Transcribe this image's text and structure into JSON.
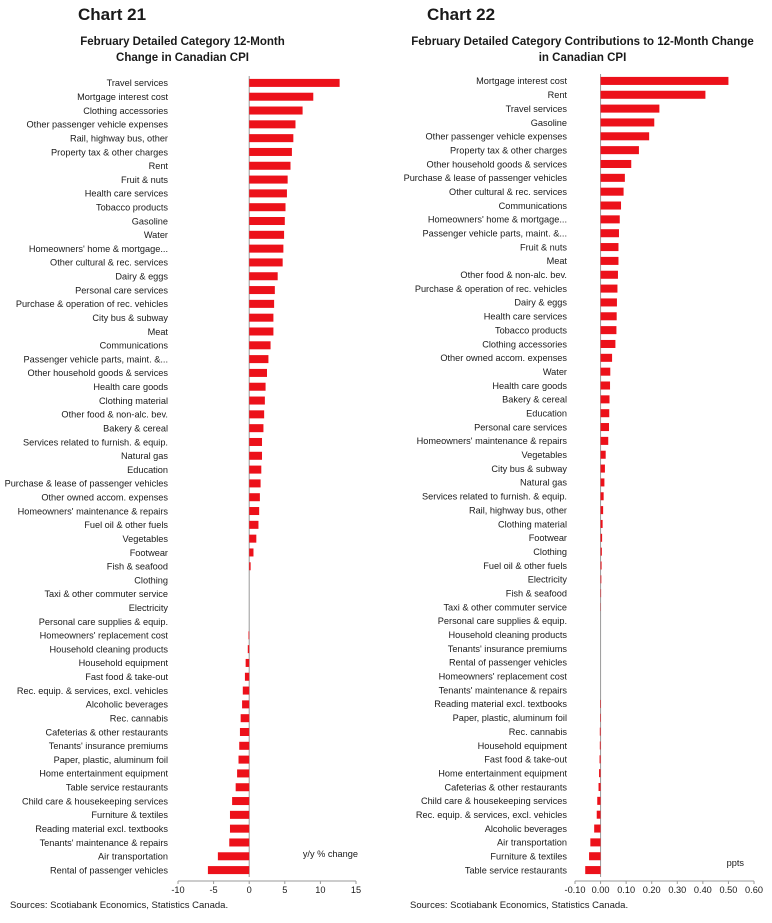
{
  "chart_data": [
    {
      "type": "bar",
      "orientation": "horizontal",
      "chart_number": "Chart 21",
      "title": "February Detailed Category 12-Month Change in Canadian CPI",
      "unit_label": "y/y % change",
      "source": "Sources: Scotiabank Economics, Statistics Canada.",
      "xlim": [
        -10,
        15
      ],
      "xticks": [
        -10,
        -5,
        0,
        5,
        10,
        15
      ],
      "bar_color": "#ec111a",
      "categories": [
        "Travel services",
        "Mortgage interest cost",
        "Clothing accessories",
        "Other passenger vehicle expenses",
        "Rail, highway bus, other",
        "Property tax & other charges",
        "Rent",
        "Fruit & nuts",
        "Health care services",
        "Tobacco products",
        "Gasoline",
        "Water",
        "Homeowners' home & mortgage...",
        "Other cultural & rec. services",
        "Dairy & eggs",
        "Personal care services",
        "Purchase & operation of rec. vehicles",
        "City bus & subway",
        "Meat",
        "Communications",
        "Passenger vehicle parts, maint. &...",
        "Other household goods & services",
        "Health care goods",
        "Clothing material",
        "Other food & non-alc. bev.",
        "Bakery & cereal",
        "Services related to furnish. & equip.",
        "Natural gas",
        "Education",
        "Purchase & lease of passenger vehicles",
        "Other owned accom. expenses",
        "Homeowners' maintenance & repairs",
        "Fuel oil & other fuels",
        "Vegetables",
        "Footwear",
        "Fish & seafood",
        "Clothing",
        "Taxi & other commuter service",
        "Electricity",
        "Personal care supplies & equip.",
        "Homeowners' replacement cost",
        "Household cleaning products",
        "Household equipment",
        "Fast food & take-out",
        "Rec. equip. & services, excl. vehicles",
        "Alcoholic beverages",
        "Rec. cannabis",
        "Cafeterias & other restaurants",
        "Tenants' insurance premiums",
        "Paper, plastic, aluminum foil",
        "Home entertainment equipment",
        "Table service restaurants",
        "Child care & housekeeping services",
        "Furniture & textiles",
        "Reading material excl. textbooks",
        "Tenants' maintenance & repairs",
        "Air transportation",
        "Rental of passenger vehicles"
      ],
      "values": [
        12.7,
        9.0,
        7.5,
        6.5,
        6.2,
        6.0,
        5.8,
        5.4,
        5.3,
        5.1,
        5.0,
        4.9,
        4.8,
        4.7,
        4.0,
        3.6,
        3.5,
        3.4,
        3.4,
        3.0,
        2.7,
        2.5,
        2.3,
        2.2,
        2.1,
        2.0,
        1.8,
        1.8,
        1.7,
        1.6,
        1.5,
        1.4,
        1.3,
        1.0,
        0.6,
        0.2,
        0.0,
        0.0,
        0.0,
        0.0,
        -0.1,
        -0.2,
        -0.5,
        -0.6,
        -0.9,
        -1.0,
        -1.2,
        -1.3,
        -1.4,
        -1.5,
        -1.7,
        -1.9,
        -2.4,
        -2.7,
        -2.7,
        -2.8,
        -4.4,
        -5.8
      ]
    },
    {
      "type": "bar",
      "orientation": "horizontal",
      "chart_number": "Chart 22",
      "title": "February Detailed Category Contributions to 12-Month Change in Canadian CPI",
      "unit_label": "ppts",
      "source": "Sources: Scotiabank Economics, Statistics Canada.",
      "xlim": [
        -0.1,
        0.6
      ],
      "xticks": [
        -0.1,
        0.0,
        0.1,
        0.2,
        0.3,
        0.4,
        0.5,
        0.6
      ],
      "xtick_labels": [
        "-0.10",
        "0.00",
        "0.10",
        "0.20",
        "0.30",
        "0.40",
        "0.50",
        "0.60"
      ],
      "bar_color": "#ec111a",
      "categories": [
        "Mortgage interest cost",
        "Rent",
        "Travel services",
        "Gasoline",
        "Other passenger vehicle expenses",
        "Property tax & other charges",
        "Other household goods & services",
        "Purchase & lease of passenger vehicles",
        "Other cultural & rec. services",
        "Communications",
        "Homeowners' home & mortgage...",
        "Passenger vehicle parts, maint. &...",
        "Fruit & nuts",
        "Meat",
        "Other food & non-alc. bev.",
        "Purchase & operation of rec. vehicles",
        "Dairy & eggs",
        "Health care services",
        "Tobacco products",
        "Clothing accessories",
        "Other owned accom. expenses",
        "Water",
        "Health care goods",
        "Bakery & cereal",
        "Education",
        "Personal care services",
        "Homeowners' maintenance & repairs",
        "Vegetables",
        "City bus & subway",
        "Natural gas",
        "Services related to furnish. & equip.",
        "Rail, highway bus, other",
        "Clothing material",
        "Footwear",
        "Clothing",
        "Fuel oil & other fuels",
        "Electricity",
        "Fish & seafood",
        "Taxi & other commuter service",
        "Personal care supplies & equip.",
        "Household cleaning products",
        "Tenants' insurance premiums",
        "Rental of passenger vehicles",
        "Homeowners' replacement cost",
        "Tenants' maintenance & repairs",
        "Reading material excl. textbooks",
        "Paper, plastic, aluminum foil",
        "Rec. cannabis",
        "Household equipment",
        "Fast food & take-out",
        "Home entertainment equipment",
        "Cafeterias & other restaurants",
        "Child care & housekeeping services",
        "Rec. equip. & services, excl. vehicles",
        "Alcoholic beverages",
        "Air transportation",
        "Furniture & textiles",
        "Table service restaurants"
      ],
      "values": [
        0.5,
        0.41,
        0.23,
        0.21,
        0.19,
        0.15,
        0.12,
        0.095,
        0.09,
        0.08,
        0.075,
        0.072,
        0.07,
        0.07,
        0.068,
        0.066,
        0.064,
        0.063,
        0.062,
        0.058,
        0.045,
        0.038,
        0.037,
        0.035,
        0.034,
        0.033,
        0.03,
        0.02,
        0.017,
        0.015,
        0.012,
        0.01,
        0.008,
        0.006,
        0.005,
        0.004,
        0.003,
        0.002,
        0.001,
        0.0,
        0.0,
        0.0,
        0.0,
        0.0,
        0.0,
        -0.002,
        -0.002,
        -0.003,
        -0.003,
        -0.004,
        -0.006,
        -0.008,
        -0.013,
        -0.015,
        -0.025,
        -0.04,
        -0.045,
        -0.06
      ]
    }
  ]
}
